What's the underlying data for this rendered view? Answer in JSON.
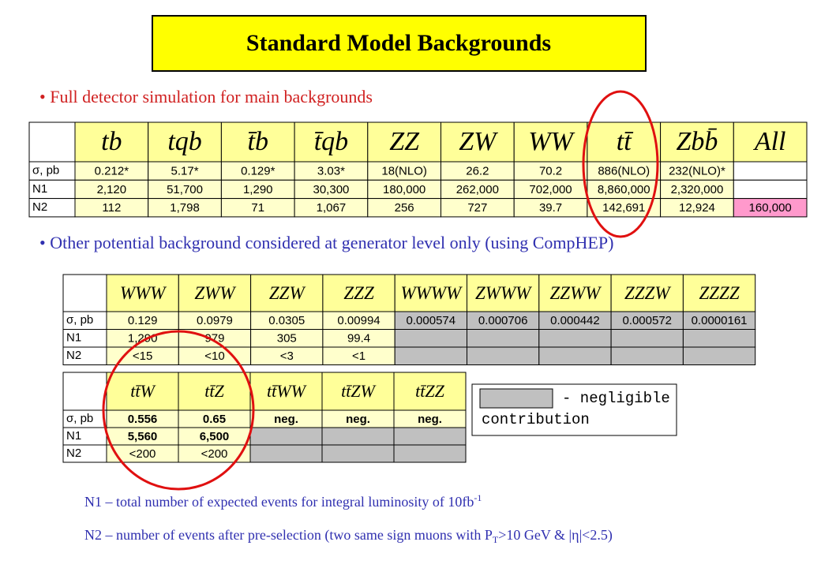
{
  "title": "Standard Model Backgrounds",
  "bullets": [
    {
      "text": "• Full detector simulation for main backgrounds",
      "color": "#d02020"
    },
    {
      "text": "• Other potential background considered at generator level only   (using CompHEP)",
      "color": "#3030b0"
    }
  ],
  "tables": [
    {
      "header": [
        "tb",
        "tqb",
        "t̄b",
        "t̄qb",
        "ZZ",
        "ZW",
        "WW",
        "tt̄",
        "Zbb̄",
        "All"
      ],
      "missing_color": "#ffffff",
      "rows": [
        {
          "label": "σ, pb",
          "cells": [
            "0.212*",
            "5.17*",
            "0.129*",
            "3.03*",
            "18(NLO)",
            "26.2",
            "70.2",
            "886(NLO)",
            "232(NLO)*"
          ]
        },
        {
          "label": "N1",
          "cells": [
            "2,120",
            "51,700",
            "1,290",
            "30,300",
            "180,000",
            "262,000",
            "702,000",
            "8,860,000",
            "2,320,000"
          ]
        },
        {
          "label": "N2",
          "cells": [
            "112",
            "1,798",
            "71",
            "1,067",
            "256",
            "727",
            "39.7",
            "142,691",
            "12,924",
            {
              "text": "160,000",
              "color": "#ff99cc"
            }
          ]
        }
      ]
    },
    {
      "header": [
        "WWW",
        "ZWW",
        "ZZW",
        "ZZZ",
        "WWWW",
        "ZWWW",
        "ZZWW",
        "ZZZW",
        "ZZZZ"
      ],
      "missing_color": "#c0c0c0",
      "rows": [
        {
          "label": "σ, pb",
          "cells": [
            "0.129",
            "0.0979",
            "0.0305",
            "0.00994",
            {
              "text": "0.000574",
              "color": "#c0c0c0"
            },
            {
              "text": "0.000706",
              "color": "#c0c0c0"
            },
            {
              "text": "0.000442",
              "color": "#c0c0c0"
            },
            {
              "text": "0.000572",
              "color": "#c0c0c0"
            },
            {
              "text": "0.0000161",
              "color": "#c0c0c0"
            }
          ]
        },
        {
          "label": "N1",
          "cells": [
            "1,290",
            "979",
            "305",
            "99.4"
          ]
        },
        {
          "label": "N2",
          "cells": [
            "<15",
            "<10",
            "<3",
            "<1"
          ]
        }
      ]
    },
    {
      "header": [
        "tt̄W",
        "tt̄Z",
        "tt̄WW",
        "tt̄ZW",
        "tt̄ZZ"
      ],
      "missing_color": "#c0c0c0",
      "rows": [
        {
          "label": "σ, pb",
          "cells": [
            {
              "text": "0.556",
              "bold": true
            },
            {
              "text": "0.65",
              "bold": true
            },
            {
              "text": "neg.",
              "bold": true
            },
            {
              "text": "neg.",
              "bold": true
            },
            {
              "text": "neg.",
              "bold": true
            }
          ]
        },
        {
          "label": "N1",
          "cells": [
            {
              "text": "5,560",
              "bold": true
            },
            {
              "text": "6,500",
              "bold": true
            }
          ]
        },
        {
          "label": "N2",
          "cells": [
            "<200",
            "<200"
          ]
        }
      ]
    }
  ],
  "legend": {
    "color": "#c0c0c0",
    "lines": [
      "- negligible",
      "contribution"
    ]
  },
  "footnotes": {
    "n1": {
      "text": "N1 – total number of expected events for integral luminosity of 10fb",
      "sup": "-1"
    },
    "n2": {
      "text": "N2 – number of events after pre-selection (two same sign muons with P",
      "sub": "T",
      "rest": ">10 GeV  & |η|<2.5)"
    }
  }
}
